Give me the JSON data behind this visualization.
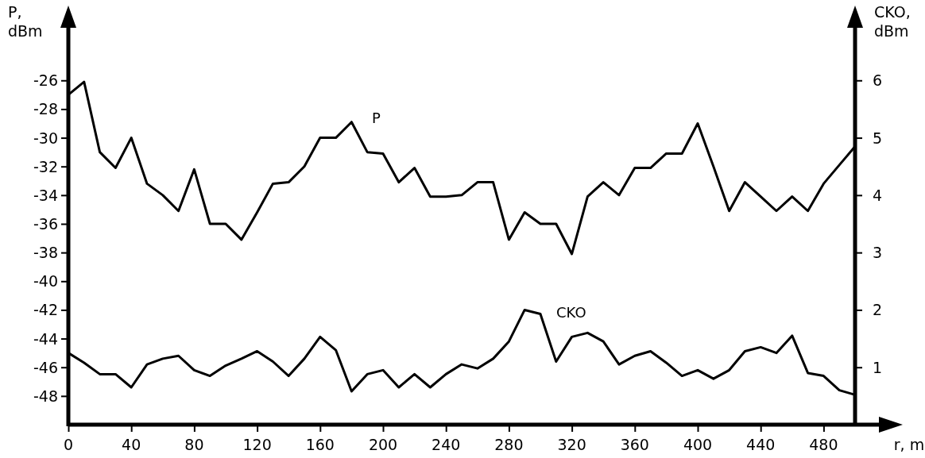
{
  "chart_data": {
    "type": "line",
    "xlabel": "r, m",
    "ylabel": "P, dBm",
    "y2label": "CKO, dBm",
    "x": [
      0,
      10,
      20,
      30,
      40,
      50,
      60,
      70,
      80,
      90,
      100,
      110,
      120,
      130,
      140,
      150,
      160,
      170,
      180,
      190,
      200,
      210,
      220,
      230,
      240,
      250,
      260,
      270,
      280,
      290,
      300,
      310,
      320,
      330,
      340,
      350,
      360,
      370,
      380,
      390,
      400,
      410,
      420,
      430,
      440,
      450,
      460,
      470,
      480,
      490,
      500
    ],
    "series": [
      {
        "name": "P",
        "color": "#000000",
        "values": [
          -27,
          -26.1,
          -31,
          -32.1,
          -30,
          -33.2,
          -34,
          -35.1,
          -32.2,
          -36,
          -36,
          -37.1,
          -35.2,
          -33.2,
          -33.1,
          -32,
          -30,
          -30,
          -28.9,
          -31,
          -31.1,
          -33.1,
          -32.1,
          -34.1,
          -34.1,
          -34,
          -33.1,
          -33.1,
          -37.1,
          -35.2,
          -36,
          -36,
          -38.1,
          -34.1,
          -33.1,
          -34,
          -32.1,
          -32.1,
          -31.1,
          -31.1,
          -29,
          -32,
          -35.1,
          -33.1,
          -34.1,
          -35.1,
          -34.1,
          -35.1,
          -33.2,
          -31.9,
          -30.6
        ]
      },
      {
        "name": "CKO",
        "color": "#000000",
        "axis": "y2",
        "values": [
          1.25,
          1.08,
          0.88,
          0.88,
          0.65,
          1.05,
          1.15,
          1.2,
          0.95,
          0.85,
          1.03,
          1.15,
          1.28,
          1.1,
          0.85,
          1.15,
          1.53,
          1.3,
          0.58,
          0.88,
          0.95,
          0.65,
          0.88,
          0.65,
          0.88,
          1.05,
          0.98,
          1.15,
          1.45,
          2.0,
          1.93,
          1.1,
          1.53,
          1.6,
          1.45,
          1.05,
          1.2,
          1.28,
          1.08,
          0.85,
          0.95,
          0.8,
          0.95,
          1.28,
          1.35,
          1.25,
          1.55,
          0.9,
          0.85,
          0.6,
          0.52
        ]
      }
    ],
    "xlim": [
      0,
      500
    ],
    "xticks": [
      0,
      40,
      80,
      120,
      160,
      200,
      240,
      280,
      320,
      360,
      400,
      440,
      480
    ],
    "ylim": [
      -50,
      -22
    ],
    "yticks": [
      -48,
      -46,
      -44,
      -42,
      -40,
      -38,
      -36,
      -34,
      -32,
      -30,
      -28,
      -26
    ],
    "y2lim": [
      0,
      7
    ],
    "y2ticks": [
      1,
      2,
      3,
      4,
      5,
      6
    ],
    "grid": false,
    "legend": false,
    "marker": "none",
    "line_style": "solid"
  }
}
